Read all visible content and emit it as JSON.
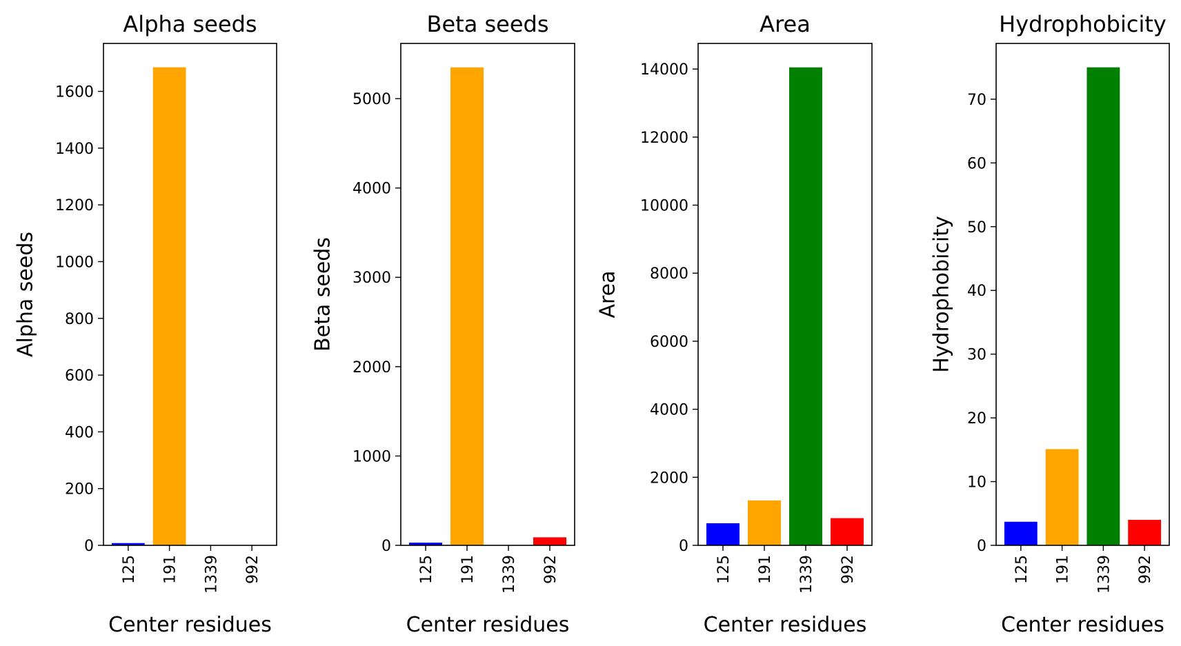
{
  "chart_data": [
    {
      "type": "bar",
      "title": "Alpha seeds",
      "xlabel": "Center residues",
      "ylabel": "Alpha seeds",
      "categories": [
        "125",
        "191",
        "1339",
        "992"
      ],
      "values": [
        8,
        1685,
        0,
        0
      ],
      "colors": [
        "#0000ff",
        "#ffa500",
        "#008000",
        "#ff0000"
      ],
      "yticks": [
        0,
        200,
        400,
        600,
        800,
        1000,
        1200,
        1400,
        1600
      ],
      "ylim": [
        0,
        1769
      ]
    },
    {
      "type": "bar",
      "title": "Beta seeds",
      "xlabel": "Center residues",
      "ylabel": "Beta seeds",
      "categories": [
        "125",
        "191",
        "1339",
        "992"
      ],
      "values": [
        30,
        5350,
        0,
        90
      ],
      "colors": [
        "#0000ff",
        "#ffa500",
        "#008000",
        "#ff0000"
      ],
      "yticks": [
        0,
        1000,
        2000,
        3000,
        4000,
        5000
      ],
      "ylim": [
        0,
        5618
      ]
    },
    {
      "type": "bar",
      "title": "Area",
      "xlabel": "Center residues",
      "ylabel": "Area",
      "categories": [
        "125",
        "191",
        "1339",
        "992"
      ],
      "values": [
        650,
        1320,
        14050,
        800
      ],
      "colors": [
        "#0000ff",
        "#ffa500",
        "#008000",
        "#ff0000"
      ],
      "yticks": [
        0,
        2000,
        4000,
        6000,
        8000,
        10000,
        12000,
        14000
      ],
      "ylim": [
        0,
        14753
      ]
    },
    {
      "type": "bar",
      "title": "Hydrophobicity",
      "xlabel": "Center residues",
      "ylabel": "Hydrophobicity",
      "categories": [
        "125",
        "191",
        "1339",
        "992"
      ],
      "values": [
        3.7,
        15.1,
        75.0,
        4.0
      ],
      "colors": [
        "#0000ff",
        "#ffa500",
        "#008000",
        "#ff0000"
      ],
      "yticks": [
        0,
        10,
        20,
        30,
        40,
        50,
        60,
        70
      ],
      "ylim": [
        0,
        78.75
      ]
    }
  ]
}
